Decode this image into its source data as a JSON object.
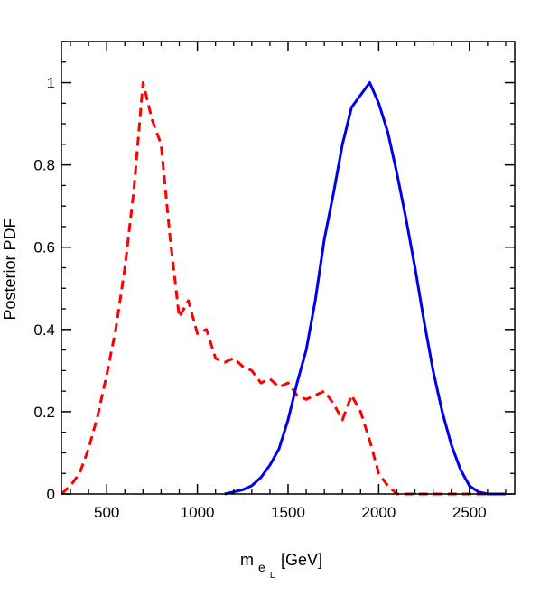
{
  "chart_data": {
    "type": "line",
    "title": "",
    "xlabel": {
      "main": "m",
      "sub": "e",
      "subsub": "L",
      "unit": "[GeV]"
    },
    "ylabel": "Posterior PDF",
    "xlim": [
      250,
      2750
    ],
    "ylim": [
      0,
      1.1
    ],
    "x_major_ticks": [
      500,
      1000,
      1500,
      2000,
      2500
    ],
    "x_minor_step": 100,
    "y_major_ticks": [
      0,
      0.2,
      0.4,
      0.6,
      0.8,
      1
    ],
    "y_tick_labels": [
      "0",
      "0.2",
      "0.4",
      "0.6",
      "0.8",
      "1"
    ],
    "y_minor_step": 0.05,
    "grid": false,
    "legend": "none",
    "series": [
      {
        "color": "#ff0000",
        "dash": "dashed",
        "x": [
          250,
          300,
          350,
          400,
          450,
          500,
          550,
          600,
          650,
          700,
          750,
          800,
          850,
          900,
          950,
          1000,
          1050,
          1100,
          1150,
          1200,
          1250,
          1300,
          1350,
          1400,
          1450,
          1500,
          1550,
          1600,
          1650,
          1700,
          1750,
          1800,
          1850,
          1900,
          1950,
          2000,
          2050,
          2100,
          2200,
          2300,
          2400,
          2500,
          2600,
          2700
        ],
        "y": [
          0.0,
          0.02,
          0.05,
          0.11,
          0.19,
          0.29,
          0.4,
          0.55,
          0.74,
          1.0,
          0.91,
          0.85,
          0.62,
          0.43,
          0.47,
          0.39,
          0.4,
          0.33,
          0.32,
          0.33,
          0.31,
          0.3,
          0.27,
          0.28,
          0.26,
          0.27,
          0.24,
          0.23,
          0.24,
          0.25,
          0.22,
          0.18,
          0.24,
          0.2,
          0.13,
          0.05,
          0.02,
          0.0,
          0.0,
          0.0,
          0.0,
          0.0,
          0.0,
          0.0
        ]
      },
      {
        "color": "#0000ee",
        "dash": "solid",
        "x": [
          1150,
          1200,
          1250,
          1300,
          1350,
          1400,
          1450,
          1500,
          1550,
          1600,
          1650,
          1700,
          1750,
          1800,
          1850,
          1900,
          1950,
          2000,
          2050,
          2100,
          2150,
          2200,
          2250,
          2300,
          2350,
          2400,
          2450,
          2500,
          2550,
          2600,
          2650,
          2700
        ],
        "y": [
          0.0,
          0.005,
          0.01,
          0.02,
          0.04,
          0.07,
          0.11,
          0.18,
          0.27,
          0.35,
          0.47,
          0.62,
          0.73,
          0.85,
          0.94,
          0.97,
          1.0,
          0.95,
          0.88,
          0.78,
          0.67,
          0.55,
          0.42,
          0.3,
          0.2,
          0.12,
          0.06,
          0.02,
          0.005,
          0.0,
          0.0,
          0.0
        ]
      }
    ]
  }
}
